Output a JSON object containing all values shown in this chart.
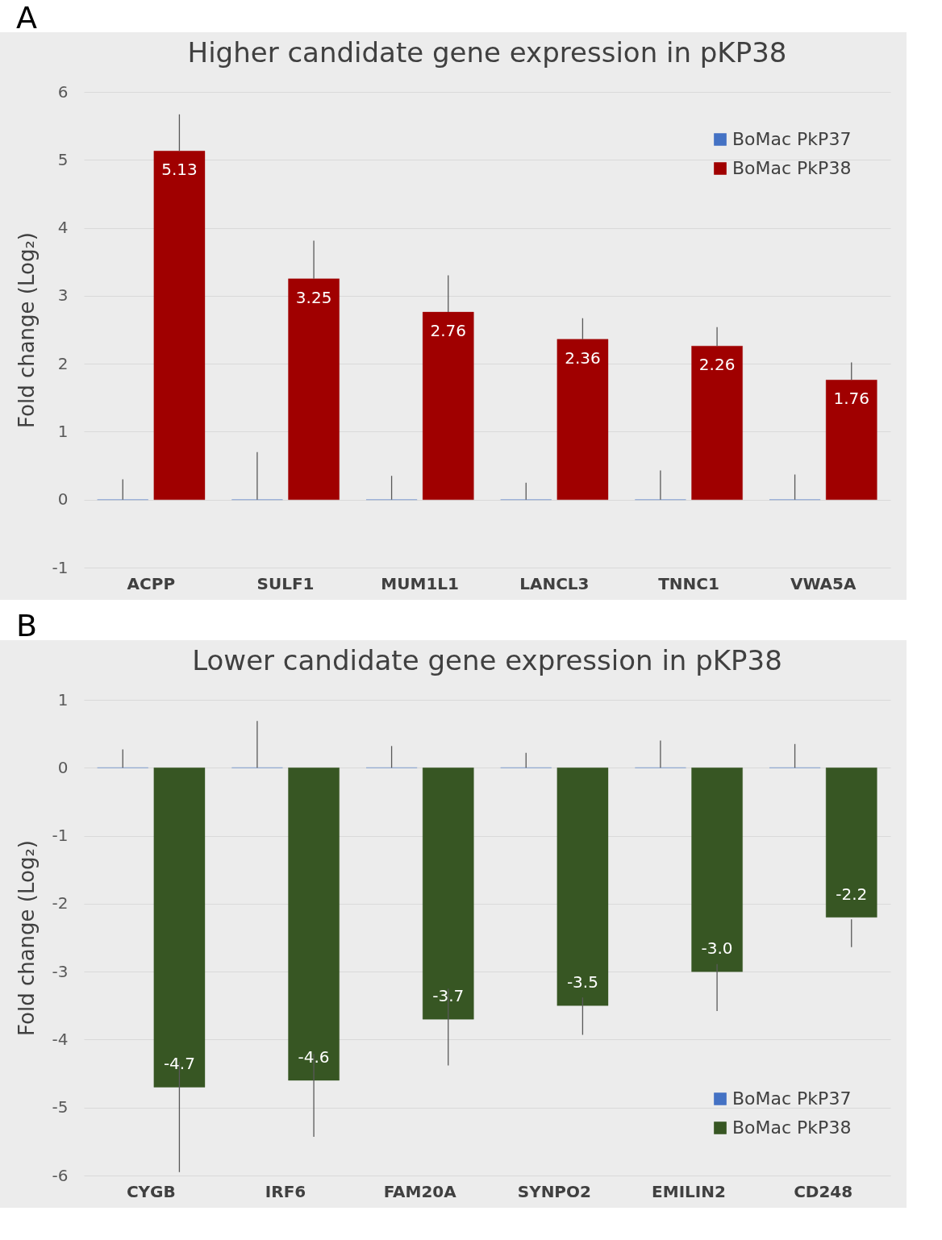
{
  "chart_data": [
    {
      "type": "bar",
      "title": "Higher candidate gene expression in pKP38",
      "ylabel": "Fold change (Log₂)",
      "annotations": [
        "A"
      ],
      "categories": [
        "ACPP",
        "SULF1",
        "MUM1L1",
        "LANCL3",
        "TNNC1",
        "VWA5A"
      ],
      "series": [
        {
          "name": "BoMac PkP37",
          "color": "#4472c4",
          "values": [
            0,
            0,
            0,
            0,
            0,
            0
          ],
          "errors": [
            [
              0,
              0.3
            ],
            [
              0,
              0.7
            ],
            [
              0,
              0.35
            ],
            [
              0,
              0.25
            ],
            [
              0,
              0.43
            ],
            [
              0,
              0.37
            ]
          ]
        },
        {
          "name": "BoMac PkP38",
          "color": "#a00000",
          "values": [
            5.13,
            3.25,
            2.76,
            2.36,
            2.26,
            1.76
          ],
          "errors": [
            [
              5.13,
              5.67
            ],
            [
              3.25,
              3.81
            ],
            [
              2.76,
              3.3
            ],
            [
              2.36,
              2.67
            ],
            [
              2.26,
              2.54
            ],
            [
              1.76,
              2.02
            ]
          ],
          "value_labels": [
            "5.13",
            "3.25",
            "2.76",
            "2.36",
            "2.26",
            "1.76"
          ]
        }
      ],
      "ylim": [
        -1,
        6
      ],
      "yticks": [
        -1,
        0,
        1,
        2,
        3,
        4,
        5,
        6
      ],
      "grid": "y",
      "legend": "top right"
    },
    {
      "type": "bar",
      "title": "Lower candidate gene expression in pKP38",
      "ylabel": "Fold change (Log₂)",
      "annotations": [
        "B"
      ],
      "categories": [
        "CYGB",
        "IRF6",
        "FAM20A",
        "SYNPO2",
        "EMILIN2",
        "CD248"
      ],
      "series": [
        {
          "name": "BoMac PkP37",
          "color": "#4472c4",
          "values": [
            0,
            0,
            0,
            0,
            0,
            0
          ],
          "errors": [
            [
              0,
              0.27
            ],
            [
              0,
              0.69
            ],
            [
              0,
              0.32
            ],
            [
              0,
              0.22
            ],
            [
              0,
              0.4
            ],
            [
              0,
              0.35
            ]
          ]
        },
        {
          "name": "BoMac PkP38",
          "color": "#375623",
          "values": [
            -4.7,
            -4.6,
            -3.7,
            -3.5,
            -3.0,
            -2.2
          ],
          "errors": [
            [
              -5.95,
              -4.33
            ],
            [
              -5.43,
              -4.21
            ],
            [
              -4.38,
              -3.25
            ],
            [
              -3.93,
              -3.38
            ],
            [
              -3.58,
              -2.89
            ],
            [
              -2.64,
              -2.23
            ]
          ],
          "value_labels": [
            "-4.7",
            "-4.6",
            "-3.7",
            "-3.5",
            "-3.0",
            "-2.2"
          ]
        }
      ],
      "ylim": [
        -6,
        1
      ],
      "yticks": [
        -6,
        -5,
        -4,
        -3,
        -2,
        -1,
        0,
        1
      ],
      "grid": "y",
      "legend": "bottom right"
    }
  ]
}
